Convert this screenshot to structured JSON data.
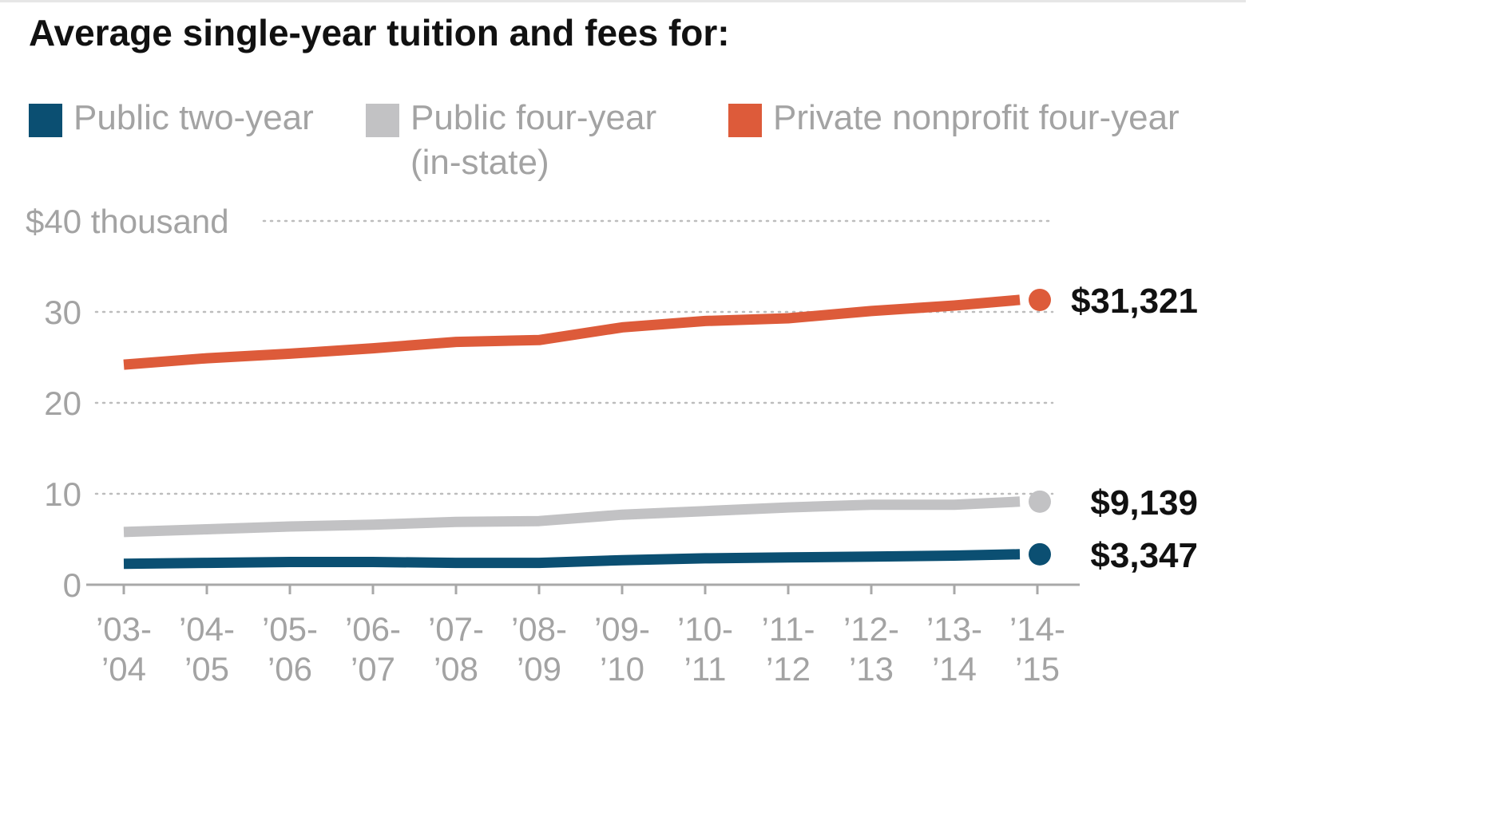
{
  "chart_data": {
    "type": "line",
    "title": "Average single-year tuition and fees for:",
    "categories": [
      [
        "’03-",
        "’04"
      ],
      [
        "’04-",
        "’05"
      ],
      [
        "’05-",
        "’06"
      ],
      [
        "’06-",
        "’07"
      ],
      [
        "’07-",
        "’08"
      ],
      [
        "’08-",
        "’09"
      ],
      [
        "’09-",
        "’10"
      ],
      [
        "’10-",
        "’11"
      ],
      [
        "’11-",
        "’12"
      ],
      [
        "’12-",
        "’13"
      ],
      [
        "’13-",
        "’14"
      ],
      [
        "’14-",
        "’15"
      ]
    ],
    "y_axis": {
      "ylim": [
        0,
        40
      ],
      "ticks": [
        {
          "value": 40,
          "label": "$40 thousand"
        },
        {
          "value": 30,
          "label": "30"
        },
        {
          "value": 20,
          "label": "20"
        },
        {
          "value": 10,
          "label": "10"
        },
        {
          "value": 0,
          "label": "0"
        }
      ],
      "grid": "dotted"
    },
    "legend_position": "top",
    "series": [
      {
        "name": "Public two-year",
        "color": "#0b4f72",
        "values": [
          2.3,
          2.4,
          2.5,
          2.5,
          2.4,
          2.4,
          2.7,
          2.9,
          3.0,
          3.1,
          3.2,
          3.347
        ],
        "end_label": "$3,347"
      },
      {
        "name": "Public four-year\n(in-state)",
        "color": "#c2c2c4",
        "values": [
          5.8,
          6.1,
          6.4,
          6.6,
          6.9,
          7.0,
          7.7,
          8.1,
          8.5,
          8.8,
          8.8,
          9.139
        ],
        "end_label": "$9,139"
      },
      {
        "name": "Private nonprofit four-year",
        "color": "#dd5b3a",
        "values": [
          24.2,
          24.9,
          25.4,
          26.0,
          26.7,
          26.9,
          28.3,
          29.0,
          29.3,
          30.1,
          30.7,
          31.321
        ],
        "end_label": "$31,321"
      }
    ]
  }
}
